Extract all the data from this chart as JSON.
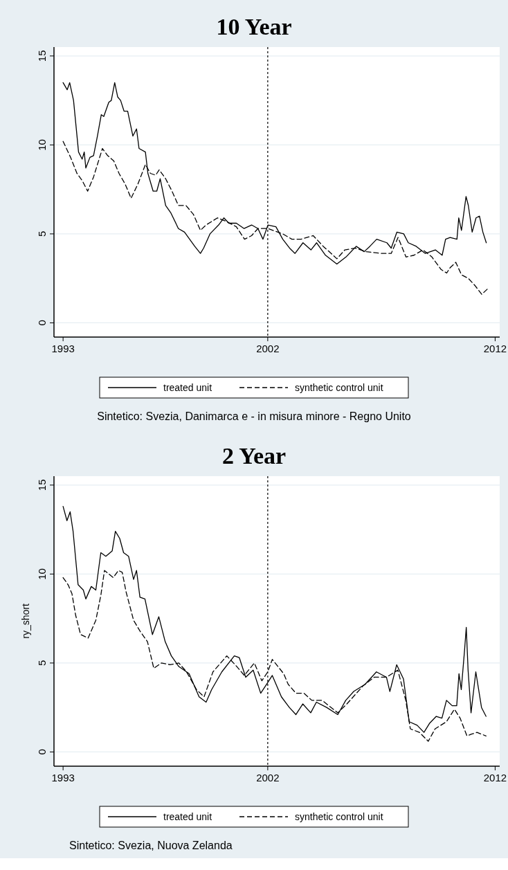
{
  "chart_data": [
    {
      "type": "line",
      "title": "10 Year",
      "xlim": [
        1992.6,
        2012.2
      ],
      "xticks": [
        1993,
        2002,
        2012
      ],
      "ylim": [
        -0.8,
        15.5
      ],
      "yticks": [
        0,
        5,
        10,
        15
      ],
      "grid": "y",
      "legend": "bottom",
      "annotations": [
        "Sintetico: Svezia, Danimarca e - in misura minore - Regno Unito"
      ],
      "ref_lines": [
        {
          "axis": "x",
          "value": 2002,
          "color": "#000000",
          "line_style": "dotted"
        }
      ],
      "series": [
        {
          "name": "treated unit",
          "color": "#000000",
          "line_style": "solid",
          "x": [
            1993.0,
            1993.18,
            1993.29,
            1993.46,
            1993.68,
            1993.84,
            1993.93,
            1994.0,
            1994.18,
            1994.34,
            1994.51,
            1994.68,
            1994.79,
            1995.01,
            1995.12,
            1995.27,
            1995.4,
            1995.53,
            1995.68,
            1995.84,
            1996.07,
            1996.23,
            1996.34,
            1996.62,
            1996.73,
            1996.96,
            1997.12,
            1997.27,
            1997.51,
            1997.73,
            1998.07,
            1998.34,
            1998.79,
            1999.04,
            1999.18,
            1999.46,
            1999.84,
            2000.07,
            2000.29,
            2000.62,
            2000.96,
            2001.29,
            2001.57,
            2001.79,
            2002.01,
            2002.36,
            2002.66,
            2002.96,
            2003.2,
            2003.55,
            2003.9,
            2004.15,
            2004.54,
            2005.04,
            2005.44,
            2005.89,
            2006.24,
            2006.49,
            2006.79,
            2007.24,
            2007.43,
            2007.68,
            2007.98,
            2008.18,
            2008.53,
            2008.93,
            2009.37,
            2009.67,
            2009.82,
            2010.02,
            2010.32,
            2010.4,
            2010.52,
            2010.72,
            2010.82,
            2010.99,
            2011.16,
            2011.31,
            2011.46,
            2011.61
          ],
          "values": [
            13.5,
            13.1,
            13.5,
            12.5,
            9.6,
            9.2,
            9.6,
            8.7,
            9.3,
            9.4,
            10.5,
            11.7,
            11.6,
            12.4,
            12.5,
            13.5,
            12.7,
            12.5,
            11.9,
            11.9,
            10.5,
            10.9,
            9.8,
            9.6,
            8.4,
            7.4,
            7.4,
            8.1,
            6.6,
            6.2,
            5.3,
            5.1,
            4.3,
            3.9,
            4.2,
            5.0,
            5.5,
            5.9,
            5.6,
            5.6,
            5.3,
            5.5,
            5.3,
            4.7,
            5.5,
            5.4,
            4.7,
            4.2,
            3.9,
            4.5,
            4.1,
            4.5,
            3.8,
            3.3,
            3.7,
            4.3,
            4.0,
            4.3,
            4.7,
            4.5,
            4.2,
            5.1,
            5.0,
            4.5,
            4.3,
            3.9,
            4.1,
            3.8,
            4.7,
            4.8,
            4.7,
            5.9,
            5.2,
            7.1,
            6.6,
            5.1,
            5.9,
            6.0,
            5.1,
            4.5
          ]
        },
        {
          "name": "synthetic control unit",
          "color": "#000000",
          "line_style": "dashed",
          "x": [
            1993.0,
            1993.33,
            1993.61,
            1993.84,
            1994.08,
            1994.34,
            1994.73,
            1994.96,
            1995.23,
            1995.46,
            1995.73,
            1995.99,
            1996.29,
            1996.62,
            1996.84,
            1997.07,
            1997.23,
            1997.51,
            1997.79,
            1998.07,
            1998.4,
            1998.73,
            1999.04,
            1999.29,
            1999.79,
            2000.18,
            2000.62,
            2000.98,
            2001.29,
            2001.57,
            2002.01,
            2002.66,
            2003.06,
            2003.46,
            2004.0,
            2004.44,
            2004.79,
            2005.04,
            2005.39,
            2005.84,
            2006.33,
            2007.03,
            2007.43,
            2007.73,
            2008.08,
            2008.43,
            2008.83,
            2009.22,
            2009.62,
            2009.87,
            2010.02,
            2010.27,
            2010.52,
            2010.82,
            2011.11,
            2011.41,
            2011.66
          ],
          "values": [
            10.2,
            9.3,
            8.4,
            8.0,
            7.4,
            8.2,
            9.8,
            9.4,
            9.1,
            8.4,
            7.8,
            7.0,
            7.8,
            8.9,
            8.4,
            8.3,
            8.6,
            8.1,
            7.4,
            6.6,
            6.6,
            6.1,
            5.2,
            5.5,
            5.9,
            5.7,
            5.4,
            4.7,
            4.9,
            5.3,
            5.3,
            5.0,
            4.7,
            4.7,
            4.9,
            4.3,
            3.9,
            3.6,
            4.1,
            4.2,
            4.0,
            3.9,
            3.9,
            4.8,
            3.7,
            3.8,
            4.1,
            3.7,
            3.0,
            2.8,
            3.1,
            3.4,
            2.7,
            2.5,
            2.1,
            1.6,
            1.9
          ]
        }
      ]
    },
    {
      "type": "line",
      "title": "2 Year",
      "ylabel": "ry_short",
      "xlim": [
        1992.6,
        2012.2
      ],
      "xticks": [
        1993,
        2002,
        2012
      ],
      "ylim": [
        -0.8,
        15.5
      ],
      "yticks": [
        0,
        5,
        10,
        15
      ],
      "grid": "y",
      "legend": "bottom",
      "annotations": [
        "Sintetico: Svezia, Nuova Zelanda"
      ],
      "ref_lines": [
        {
          "axis": "x",
          "value": 2002,
          "color": "#000000",
          "line_style": "dotted"
        }
      ],
      "series": [
        {
          "name": "treated unit",
          "color": "#000000",
          "line_style": "solid",
          "x": [
            1993.0,
            1993.17,
            1993.31,
            1993.44,
            1993.66,
            1993.89,
            1994.0,
            1994.24,
            1994.44,
            1994.66,
            1994.88,
            1995.16,
            1995.3,
            1995.49,
            1995.66,
            1995.88,
            1996.1,
            1996.23,
            1996.38,
            1996.6,
            1996.93,
            1997.21,
            1997.49,
            1997.76,
            1998.09,
            1998.54,
            1998.98,
            1999.29,
            1999.53,
            1999.98,
            2000.53,
            2000.75,
            2001.03,
            2001.36,
            2001.69,
            2002.0,
            2002.2,
            2002.6,
            2002.95,
            2003.24,
            2003.54,
            2003.89,
            2004.14,
            2004.59,
            2005.08,
            2005.43,
            2005.78,
            2006.28,
            2006.78,
            2007.22,
            2007.37,
            2007.67,
            2007.97,
            2008.22,
            2008.57,
            2008.87,
            2009.11,
            2009.41,
            2009.66,
            2009.86,
            2010.11,
            2010.31,
            2010.41,
            2010.51,
            2010.66,
            2010.73,
            2010.81,
            2010.94,
            2011.15,
            2011.4,
            2011.6
          ],
          "values": [
            13.8,
            13.0,
            13.5,
            12.4,
            9.4,
            9.1,
            8.6,
            9.3,
            9.1,
            11.2,
            11.0,
            11.3,
            12.4,
            12.0,
            11.2,
            11.0,
            9.7,
            10.2,
            8.7,
            8.6,
            6.6,
            7.6,
            6.2,
            5.4,
            4.8,
            4.4,
            3.1,
            2.8,
            3.5,
            4.5,
            5.4,
            5.3,
            4.2,
            4.6,
            3.3,
            3.9,
            4.3,
            3.1,
            2.5,
            2.1,
            2.7,
            2.2,
            2.8,
            2.5,
            2.1,
            2.9,
            3.4,
            3.8,
            4.5,
            4.2,
            3.4,
            4.9,
            4.1,
            1.7,
            1.5,
            1.1,
            1.6,
            2.0,
            1.9,
            2.9,
            2.6,
            2.6,
            4.4,
            3.5,
            5.8,
            7.0,
            4.6,
            2.2,
            4.5,
            2.5,
            2.0
          ]
        },
        {
          "name": "synthetic control unit",
          "color": "#000000",
          "line_style": "dashed",
          "x": [
            1993.0,
            1993.22,
            1993.39,
            1993.55,
            1993.77,
            1994.1,
            1994.44,
            1994.66,
            1994.82,
            1995.21,
            1995.43,
            1995.6,
            1995.77,
            1996.1,
            1996.38,
            1996.71,
            1996.99,
            1997.32,
            1997.71,
            1998.09,
            1998.43,
            1998.87,
            1999.2,
            1999.59,
            2000.2,
            2000.64,
            2000.97,
            2001.41,
            2001.74,
            2002.0,
            2002.2,
            2002.7,
            2002.9,
            2003.24,
            2003.59,
            2003.94,
            2004.39,
            2005.08,
            2005.48,
            2006.18,
            2006.68,
            2007.22,
            2007.72,
            2008.07,
            2008.27,
            2008.67,
            2009.06,
            2009.36,
            2009.86,
            2010.21,
            2010.46,
            2010.76,
            2010.96,
            2011.2,
            2011.6
          ],
          "values": [
            9.8,
            9.4,
            8.9,
            7.7,
            6.6,
            6.4,
            7.4,
            8.8,
            10.2,
            9.8,
            10.2,
            10.1,
            9.0,
            7.4,
            6.8,
            6.2,
            4.7,
            5.0,
            4.9,
            5.0,
            4.5,
            3.5,
            3.1,
            4.5,
            5.4,
            4.8,
            4.3,
            5.0,
            4.0,
            4.5,
            5.2,
            4.4,
            3.8,
            3.3,
            3.3,
            2.9,
            2.9,
            2.2,
            2.7,
            3.7,
            4.2,
            4.2,
            4.6,
            2.9,
            1.3,
            1.1,
            0.6,
            1.3,
            1.7,
            2.4,
            1.9,
            0.9,
            1.0,
            1.1,
            0.9
          ]
        }
      ]
    }
  ]
}
